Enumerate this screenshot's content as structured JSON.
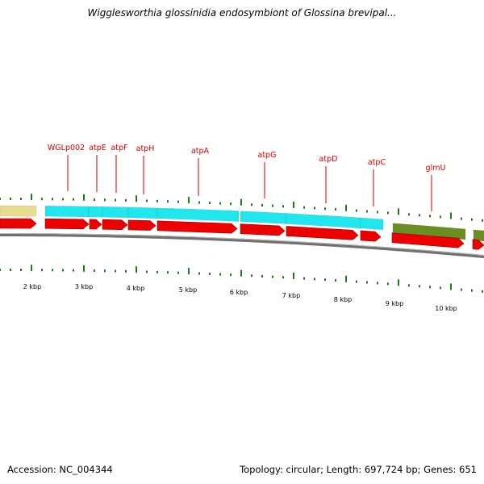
{
  "title": "Wigglesworthia glossinidia endosymbiont of Glossina brevipal...",
  "footer": {
    "accession": "Accession: NC_004344",
    "summary": "Topology: circular; Length: 697,724 bp; Genes: 651"
  },
  "colors": {
    "label_text": "#cc0000",
    "leader_line": "#cc0000",
    "tick": "#1f7a1f",
    "gene_cyan": "#22e6ee",
    "gene_red": "#ee0000",
    "gene_olive": "#6b8e23",
    "gene_khaki": "#e8dc90",
    "backbone": "#707070"
  },
  "genes": [
    {
      "name": "WGLp002"
    },
    {
      "name": "atpE"
    },
    {
      "name": "atpF"
    },
    {
      "name": "atpH"
    },
    {
      "name": "atpA"
    },
    {
      "name": "atpG"
    },
    {
      "name": "atpD"
    },
    {
      "name": "atpC"
    },
    {
      "name": "glmU"
    }
  ],
  "scale": {
    "unit": "kbp",
    "labels": [
      "2 kbp",
      "3 kbp",
      "4 kbp",
      "5 kbp",
      "6 kbp",
      "7 kbp",
      "8 kbp",
      "9 kbp",
      "10 kbp"
    ]
  }
}
